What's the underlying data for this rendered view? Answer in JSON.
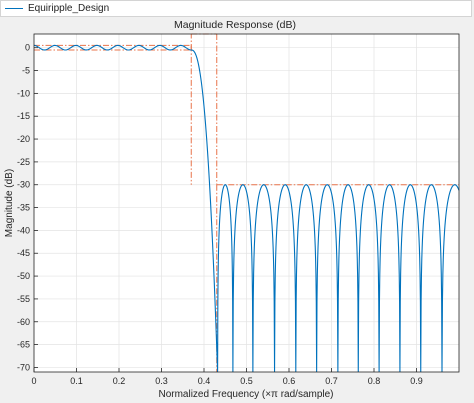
{
  "legend": {
    "label": "Equiripple_Design",
    "color": "#0072bd"
  },
  "chart_data": {
    "type": "line",
    "title": "Magnitude Response (dB)",
    "xlabel": "Normalized Frequency (×π rad/sample)",
    "ylabel": "Magnitude (dB)",
    "xlim": [
      0,
      1
    ],
    "ylim": [
      -71,
      3
    ],
    "grid": true,
    "x_ticks": [
      0,
      0.1,
      0.2,
      0.3,
      0.4,
      0.5,
      0.6,
      0.7,
      0.8,
      0.9
    ],
    "x_tick_labels": [
      "0",
      "0.1",
      "0.2",
      "0.3",
      "0.4",
      "0.5",
      "0.6",
      "0.7",
      "0.8",
      "0.9"
    ],
    "y_ticks": [
      0,
      -5,
      -10,
      -15,
      -20,
      -25,
      -30,
      -35,
      -40,
      -45,
      -50,
      -55,
      -60,
      -65,
      -70
    ],
    "y_tick_labels": [
      "0",
      "-5",
      "-10",
      "-15",
      "-20",
      "-25",
      "-30",
      "-35",
      "-40",
      "-45",
      "-50",
      "-55",
      "-60",
      "-65",
      "-70"
    ],
    "series": [
      {
        "name": "Equiripple_Design",
        "color": "#0072bd",
        "passband": {
          "f_end": 0.37,
          "ripple_db": 0.5,
          "ripple_cycles": 7.5
        },
        "transition": {
          "f_start": 0.37,
          "f_end": 0.43
        },
        "stopband": {
          "level_db": -30,
          "nulls": [
            0.432,
            0.468,
            0.515,
            0.566,
            0.616,
            0.665,
            0.715,
            0.763,
            0.812,
            0.861,
            0.91,
            0.96
          ],
          "null_floor_db": -71
        }
      }
    ],
    "mask": {
      "color": "#e8734a",
      "style": "dash-dot",
      "points": [
        [
          0,
          -0.5
        ],
        [
          0.37,
          -0.5
        ],
        [
          0.37,
          3
        ],
        [
          0.43,
          3
        ],
        [
          0.43,
          -30
        ],
        [
          1,
          -30
        ],
        [
          0,
          0.5
        ],
        [
          0.37,
          0.5
        ],
        [
          0.37,
          -30
        ],
        [
          0.43,
          -30
        ],
        [
          0.43,
          -71
        ]
      ]
    }
  }
}
